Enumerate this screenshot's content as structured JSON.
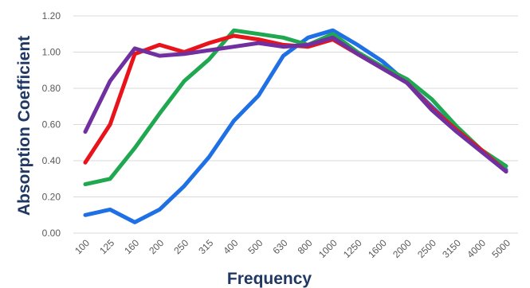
{
  "chart_data": {
    "type": "line",
    "xlabel": "Frequency",
    "ylabel": "Absorption Coefficient",
    "categories": [
      "100",
      "125",
      "160",
      "200",
      "250",
      "315",
      "400",
      "500",
      "630",
      "800",
      "1000",
      "1250",
      "1600",
      "2000",
      "2500",
      "3150",
      "4000",
      "5000"
    ],
    "ylim": [
      0,
      1.2
    ],
    "yticks": [
      "0.00",
      "0.20",
      "0.40",
      "0.60",
      "0.80",
      "1.00",
      "1.20"
    ],
    "grid": true,
    "legend": "none",
    "series": [
      {
        "color": "#1f6fe5",
        "values": [
          0.1,
          0.13,
          0.06,
          0.13,
          0.26,
          0.42,
          0.62,
          0.76,
          0.98,
          1.08,
          1.12,
          1.04,
          0.95,
          0.83,
          0.7,
          0.57,
          0.46,
          0.35
        ]
      },
      {
        "color": "#1fa84f",
        "values": [
          0.27,
          0.3,
          0.47,
          0.66,
          0.84,
          0.96,
          1.12,
          1.1,
          1.08,
          1.04,
          1.1,
          1.0,
          0.92,
          0.85,
          0.74,
          0.59,
          0.46,
          0.37
        ]
      },
      {
        "color": "#e8141b",
        "values": [
          0.39,
          0.6,
          0.99,
          1.04,
          1.0,
          1.05,
          1.09,
          1.07,
          1.04,
          1.03,
          1.07,
          0.99,
          0.91,
          0.83,
          0.69,
          0.57,
          0.46,
          0.34
        ]
      },
      {
        "color": "#7030a0",
        "values": [
          0.56,
          0.84,
          1.02,
          0.98,
          0.99,
          1.01,
          1.03,
          1.05,
          1.03,
          1.04,
          1.08,
          0.99,
          0.91,
          0.83,
          0.68,
          0.56,
          0.45,
          0.34
        ]
      }
    ]
  }
}
